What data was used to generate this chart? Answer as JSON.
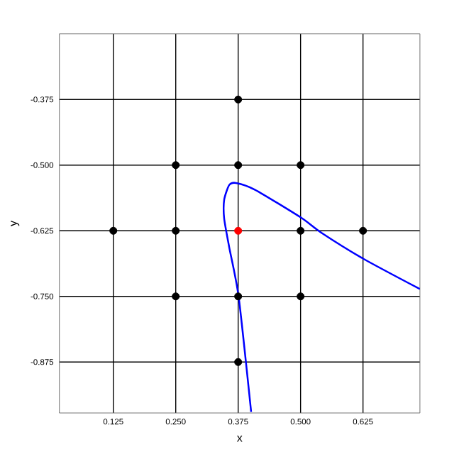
{
  "chart_data": {
    "type": "scatter",
    "xlabel": "x",
    "ylabel": "y",
    "xlim": [
      0.017,
      0.739
    ],
    "ylim": [
      -0.972,
      -0.25
    ],
    "xticks": [
      {
        "value": 0.125,
        "label": "0.125"
      },
      {
        "value": 0.25,
        "label": "0.250"
      },
      {
        "value": 0.375,
        "label": "0.375"
      },
      {
        "value": 0.5,
        "label": "0.500"
      },
      {
        "value": 0.625,
        "label": "0.625"
      }
    ],
    "yticks": [
      {
        "value": -0.875,
        "label": "-0.875"
      },
      {
        "value": -0.75,
        "label": "-0.750"
      },
      {
        "value": -0.625,
        "label": "-0.625"
      },
      {
        "value": -0.5,
        "label": "-0.500"
      },
      {
        "value": -0.375,
        "label": "-0.375"
      }
    ],
    "grid": true,
    "series": [
      {
        "color": "#000000",
        "marker": "circle",
        "x": [
          0.375,
          0.25,
          0.375,
          0.5,
          0.125,
          0.25,
          0.5,
          0.625,
          0.25,
          0.375,
          0.5,
          0.375
        ],
        "values": [
          -0.375,
          -0.5,
          -0.5,
          -0.5,
          -0.625,
          -0.625,
          -0.625,
          -0.625,
          -0.75,
          -0.75,
          -0.75,
          -0.875
        ]
      },
      {
        "color": "#ff0000",
        "marker": "circle",
        "x": [
          0.375
        ],
        "values": [
          -0.625
        ]
      },
      {
        "type": "line",
        "color": "#0000ff",
        "marker": "none",
        "x": [
          0.401,
          0.376,
          0.357,
          0.347,
          0.347,
          0.357,
          0.371,
          0.409,
          0.501,
          0.542,
          0.627,
          0.739
        ],
        "values": [
          -0.97,
          -0.751,
          -0.656,
          -0.602,
          -0.566,
          -0.538,
          -0.534,
          -0.547,
          -0.6,
          -0.629,
          -0.679,
          -0.736
        ]
      }
    ]
  }
}
